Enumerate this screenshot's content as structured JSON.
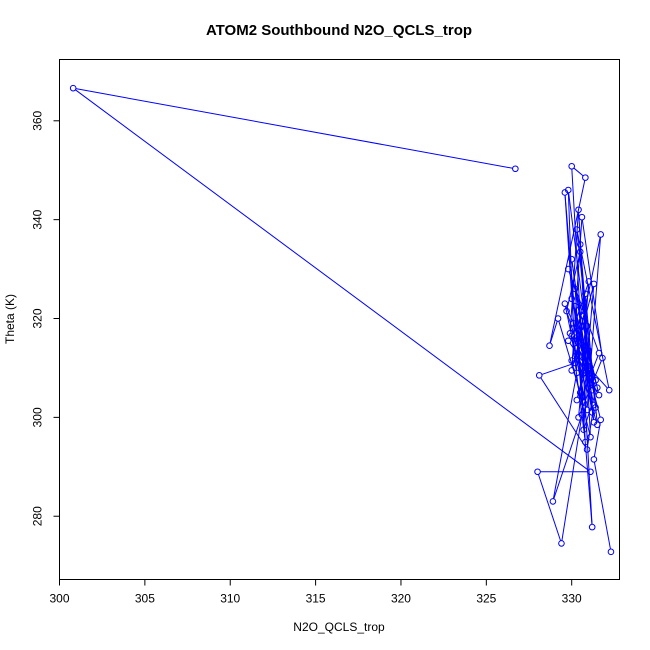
{
  "chart_data": {
    "type": "line",
    "title": "ATOM2 Southbound N2O_QCLS_trop",
    "xlabel": "N2O_QCLS_trop",
    "ylabel": "Theta (K)",
    "xlim": [
      300.0,
      332.8
    ],
    "ylim": [
      267.2,
      372.4
    ],
    "xticks": [
      300,
      305,
      310,
      315,
      320,
      325,
      330
    ],
    "yticks": [
      280,
      300,
      320,
      340,
      360
    ],
    "xtick_labels": [
      "300",
      "305",
      "310",
      "315",
      "320",
      "325",
      "330"
    ],
    "ytick_labels": [
      "280",
      "300",
      "320",
      "340",
      "360"
    ],
    "grid": false,
    "legend": "none",
    "series": [
      {
        "color": "#0000ff",
        "marker": "open-circle",
        "x": [
          326.7,
          300.8,
          331.1,
          328.0,
          329.4,
          330.6,
          328.9,
          330.3,
          329.6,
          331.2,
          330.0,
          330.8,
          328.7,
          329.2,
          330.5,
          331.0,
          330.1,
          329.8,
          331.4,
          330.3,
          332.2,
          330.9,
          330.0,
          331.3,
          330.7,
          329.8,
          331.6,
          330.6,
          330.2,
          331.0,
          330.4,
          329.9,
          331.5,
          330.8,
          330.0,
          331.1,
          330.5,
          331.2,
          330.1,
          329.6,
          330.9,
          331.7,
          330.3,
          330.7,
          331.3,
          330.0,
          330.6,
          331.8,
          330.4,
          330.9,
          329.8,
          331.4,
          330.2,
          330.8,
          330.0,
          331.0,
          330.5,
          329.7,
          331.2,
          330.3,
          331.6,
          330.6,
          330.2,
          328.1,
          330.9,
          331.3,
          330.5,
          330.0,
          331.5,
          330.7,
          331.0,
          330.3,
          330.8,
          331.2,
          330.4,
          331.7,
          331.3,
          332.3
        ],
        "y": [
          350.3,
          366.6,
          289.0,
          289.0,
          274.5,
          300.5,
          283.0,
          309.0,
          345.5,
          277.8,
          350.8,
          348.5,
          314.5,
          320.0,
          305.0,
          327.5,
          318.0,
          346.0,
          302.0,
          338.0,
          305.5,
          310.5,
          332.0,
          299.0,
          320.5,
          330.0,
          313.0,
          304.0,
          322.5,
          308.0,
          342.0,
          317.0,
          298.5,
          325.0,
          311.5,
          296.0,
          335.0,
          306.5,
          319.0,
          323.0,
          301.5,
          337.0,
          314.0,
          303.0,
          327.0,
          309.5,
          340.5,
          312.0,
          300.0,
          318.5,
          315.5,
          307.5,
          326.0,
          295.0,
          316.5,
          310.0,
          333.5,
          321.5,
          305.5,
          312.5,
          304.5,
          319.5,
          311.0,
          308.5,
          293.5,
          302.5,
          316.0,
          324.0,
          306.0,
          297.5,
          313.5,
          303.5,
          309.0,
          301.0,
          317.5,
          299.5,
          291.5,
          272.8
        ]
      }
    ]
  }
}
